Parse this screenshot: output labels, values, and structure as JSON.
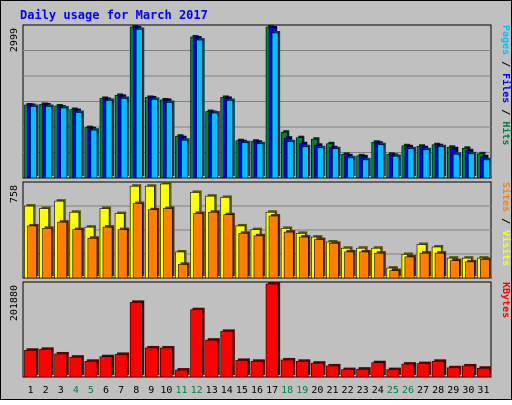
{
  "chart_data": [
    {
      "type": "bar",
      "title": "Daily usage for March 2017",
      "ylabel": "Pages / Files / Hits",
      "ytick": "2999",
      "ylim": [
        0,
        2999
      ],
      "categories": [
        "1",
        "2",
        "3",
        "4",
        "5",
        "6",
        "7",
        "8",
        "9",
        "10",
        "11",
        "12",
        "13",
        "14",
        "15",
        "16",
        "17",
        "18",
        "19",
        "20",
        "21",
        "22",
        "23",
        "24",
        "25",
        "26",
        "27",
        "28",
        "29",
        "30",
        "31"
      ],
      "series": [
        {
          "name": "Hits",
          "color": "#008040",
          "values": [
            1450,
            1460,
            1430,
            1360,
            1000,
            1580,
            1640,
            2999,
            1600,
            1550,
            830,
            2800,
            1320,
            1600,
            740,
            730,
            2999,
            910,
            800,
            770,
            680,
            470,
            440,
            710,
            470,
            640,
            630,
            660,
            610,
            590,
            480
          ]
        },
        {
          "name": "Files",
          "color": "#0000ff",
          "values": [
            1440,
            1450,
            1410,
            1340,
            980,
            1560,
            1620,
            2980,
            1590,
            1540,
            800,
            2780,
            1300,
            1580,
            720,
            710,
            2980,
            790,
            680,
            650,
            600,
            440,
            420,
            690,
            450,
            620,
            600,
            640,
            580,
            540,
            420
          ]
        },
        {
          "name": "Pages",
          "color": "#00c0ff",
          "values": [
            1420,
            1420,
            1390,
            1300,
            950,
            1540,
            1580,
            2950,
            1560,
            1500,
            750,
            2740,
            1290,
            1540,
            700,
            680,
            2880,
            720,
            620,
            600,
            580,
            400,
            360,
            660,
            430,
            580,
            560,
            620,
            470,
            480,
            360
          ]
        }
      ]
    },
    {
      "type": "bar",
      "ylabel": "Sites / Visits",
      "ytick": "758",
      "ylim": [
        0,
        758
      ],
      "categories": [
        "1",
        "2",
        "3",
        "4",
        "5",
        "6",
        "7",
        "8",
        "9",
        "10",
        "11",
        "12",
        "13",
        "14",
        "15",
        "16",
        "17",
        "18",
        "19",
        "20",
        "21",
        "22",
        "23",
        "24",
        "25",
        "26",
        "27",
        "28",
        "29",
        "30",
        "31"
      ],
      "series": [
        {
          "name": "Visits",
          "color": "#ffff00",
          "values": [
            580,
            560,
            620,
            530,
            410,
            560,
            520,
            740,
            740,
            760,
            210,
            690,
            660,
            650,
            420,
            390,
            530,
            400,
            360,
            330,
            290,
            240,
            240,
            240,
            80,
            190,
            270,
            250,
            160,
            160,
            160
          ]
        },
        {
          "name": "Sites",
          "color": "#ff8000",
          "values": [
            420,
            400,
            450,
            390,
            320,
            410,
            390,
            600,
            550,
            560,
            110,
            520,
            530,
            510,
            360,
            340,
            500,
            370,
            330,
            310,
            280,
            210,
            210,
            200,
            60,
            170,
            200,
            200,
            140,
            130,
            150
          ]
        }
      ]
    },
    {
      "type": "bar",
      "ylabel": "KBytes",
      "ytick": "201880",
      "ylim": [
        0,
        201880
      ],
      "categories": [
        "1",
        "2",
        "3",
        "4",
        "5",
        "6",
        "7",
        "8",
        "9",
        "10",
        "11",
        "12",
        "13",
        "14",
        "15",
        "16",
        "17",
        "18",
        "19",
        "20",
        "21",
        "22",
        "23",
        "24",
        "25",
        "26",
        "27",
        "28",
        "29",
        "30",
        "31"
      ],
      "series": [
        {
          "name": "KBytes",
          "color": "#ff0000",
          "values": [
            58000,
            60000,
            50000,
            43000,
            34000,
            44000,
            49000,
            162000,
            63000,
            63000,
            15000,
            146000,
            80000,
            99000,
            36000,
            34000,
            201880,
            37000,
            34000,
            30000,
            24000,
            16000,
            17000,
            31000,
            16000,
            28000,
            29000,
            34000,
            20000,
            24000,
            19000
          ]
        }
      ]
    }
  ],
  "x_tick_colors": {
    "weekday": "#000000",
    "weekend": "#008040"
  },
  "weekend_days": [
    4,
    5,
    11,
    12,
    18,
    19,
    25,
    26
  ],
  "colors": {
    "title": "#0000ff",
    "panel_bg": "#c0c0c0",
    "grid": "#808080",
    "frame": "#000000"
  }
}
